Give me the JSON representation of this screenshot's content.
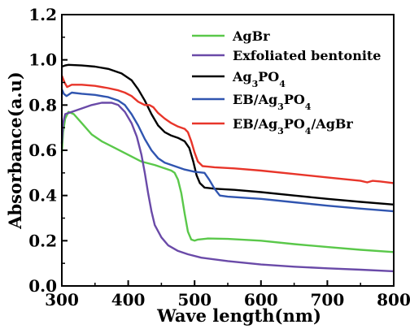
{
  "chart_data": {
    "type": "line",
    "xlabel": "Wave length(nm)",
    "ylabel": "Absorbance(a.u)",
    "xlim": [
      300,
      800
    ],
    "ylim": [
      0.0,
      1.2
    ],
    "xticks": [
      "300",
      "400",
      "500",
      "600",
      "700",
      "800"
    ],
    "yticks": [
      "0.0",
      "0.2",
      "0.4",
      "0.6",
      "0.8",
      "1.0",
      "1.2"
    ],
    "grid": false,
    "legend_position": "top-right",
    "series": [
      {
        "name": "AgBr",
        "color": "#5ac84a",
        "points": [
          [
            300,
            0.59
          ],
          [
            302,
            0.68
          ],
          [
            305,
            0.74
          ],
          [
            310,
            0.77
          ],
          [
            318,
            0.76
          ],
          [
            330,
            0.72
          ],
          [
            345,
            0.67
          ],
          [
            360,
            0.64
          ],
          [
            380,
            0.61
          ],
          [
            400,
            0.58
          ],
          [
            420,
            0.55
          ],
          [
            440,
            0.535
          ],
          [
            455,
            0.52
          ],
          [
            465,
            0.51
          ],
          [
            470,
            0.5
          ],
          [
            475,
            0.47
          ],
          [
            480,
            0.41
          ],
          [
            485,
            0.32
          ],
          [
            490,
            0.24
          ],
          [
            495,
            0.205
          ],
          [
            500,
            0.2
          ],
          [
            505,
            0.205
          ],
          [
            520,
            0.21
          ],
          [
            550,
            0.208
          ],
          [
            600,
            0.2
          ],
          [
            650,
            0.185
          ],
          [
            700,
            0.172
          ],
          [
            750,
            0.16
          ],
          [
            800,
            0.15
          ]
        ]
      },
      {
        "name": "Exfoliated bentonite",
        "color": "#6a4aa8",
        "points": [
          [
            300,
            0.63
          ],
          [
            302,
            0.72
          ],
          [
            305,
            0.76
          ],
          [
            315,
            0.77
          ],
          [
            330,
            0.785
          ],
          [
            345,
            0.8
          ],
          [
            360,
            0.81
          ],
          [
            375,
            0.81
          ],
          [
            385,
            0.8
          ],
          [
            395,
            0.77
          ],
          [
            405,
            0.72
          ],
          [
            413,
            0.66
          ],
          [
            420,
            0.58
          ],
          [
            425,
            0.5
          ],
          [
            430,
            0.41
          ],
          [
            435,
            0.33
          ],
          [
            440,
            0.27
          ],
          [
            450,
            0.215
          ],
          [
            460,
            0.18
          ],
          [
            475,
            0.155
          ],
          [
            490,
            0.14
          ],
          [
            510,
            0.125
          ],
          [
            550,
            0.11
          ],
          [
            600,
            0.095
          ],
          [
            650,
            0.085
          ],
          [
            700,
            0.078
          ],
          [
            750,
            0.072
          ],
          [
            800,
            0.065
          ]
        ]
      },
      {
        "name": "Ag3PO4",
        "label_html": "Ag<tspan baseline-shift=\"sub\" font-size=\"11\">3</tspan>PO<tspan baseline-shift=\"sub\" font-size=\"11\">4</tspan>",
        "color": "#000000",
        "points": [
          [
            300,
            0.97
          ],
          [
            305,
            0.975
          ],
          [
            310,
            0.978
          ],
          [
            330,
            0.975
          ],
          [
            350,
            0.97
          ],
          [
            370,
            0.96
          ],
          [
            390,
            0.94
          ],
          [
            405,
            0.91
          ],
          [
            415,
            0.87
          ],
          [
            425,
            0.82
          ],
          [
            435,
            0.76
          ],
          [
            445,
            0.71
          ],
          [
            455,
            0.68
          ],
          [
            465,
            0.665
          ],
          [
            475,
            0.655
          ],
          [
            485,
            0.64
          ],
          [
            492,
            0.61
          ],
          [
            498,
            0.55
          ],
          [
            503,
            0.49
          ],
          [
            508,
            0.455
          ],
          [
            515,
            0.435
          ],
          [
            530,
            0.43
          ],
          [
            560,
            0.425
          ],
          [
            600,
            0.415
          ],
          [
            650,
            0.4
          ],
          [
            700,
            0.385
          ],
          [
            750,
            0.372
          ],
          [
            800,
            0.36
          ]
        ]
      },
      {
        "name": "EB/Ag3PO4",
        "label_html": "EB/Ag<tspan baseline-shift=\"sub\" font-size=\"11\">3</tspan>PO<tspan baseline-shift=\"sub\" font-size=\"11\">4</tspan>",
        "color": "#3055b0",
        "points": [
          [
            300,
            0.87
          ],
          [
            303,
            0.85
          ],
          [
            307,
            0.84
          ],
          [
            315,
            0.855
          ],
          [
            330,
            0.85
          ],
          [
            350,
            0.845
          ],
          [
            370,
            0.835
          ],
          [
            385,
            0.82
          ],
          [
            395,
            0.8
          ],
          [
            405,
            0.76
          ],
          [
            415,
            0.71
          ],
          [
            425,
            0.65
          ],
          [
            435,
            0.6
          ],
          [
            445,
            0.565
          ],
          [
            455,
            0.545
          ],
          [
            470,
            0.53
          ],
          [
            485,
            0.515
          ],
          [
            500,
            0.505
          ],
          [
            515,
            0.5
          ],
          [
            522,
            0.47
          ],
          [
            530,
            0.43
          ],
          [
            538,
            0.4
          ],
          [
            550,
            0.395
          ],
          [
            600,
            0.385
          ],
          [
            650,
            0.37
          ],
          [
            700,
            0.355
          ],
          [
            750,
            0.342
          ],
          [
            800,
            0.33
          ]
        ]
      },
      {
        "name": "EB/Ag3PO4/AgBr",
        "label_html": "EB/Ag<tspan baseline-shift=\"sub\" font-size=\"11\">3</tspan>PO<tspan baseline-shift=\"sub\" font-size=\"11\">4</tspan><tspan baseline-shift=\"0\">/AgBr</tspan>",
        "color": "#e8352a",
        "points": [
          [
            300,
            0.93
          ],
          [
            304,
            0.9
          ],
          [
            308,
            0.88
          ],
          [
            315,
            0.89
          ],
          [
            330,
            0.89
          ],
          [
            350,
            0.885
          ],
          [
            370,
            0.875
          ],
          [
            385,
            0.865
          ],
          [
            395,
            0.855
          ],
          [
            405,
            0.84
          ],
          [
            415,
            0.815
          ],
          [
            425,
            0.8
          ],
          [
            432,
            0.8
          ],
          [
            438,
            0.79
          ],
          [
            445,
            0.765
          ],
          [
            455,
            0.74
          ],
          [
            465,
            0.72
          ],
          [
            475,
            0.705
          ],
          [
            485,
            0.695
          ],
          [
            490,
            0.68
          ],
          [
            495,
            0.64
          ],
          [
            500,
            0.59
          ],
          [
            505,
            0.55
          ],
          [
            512,
            0.53
          ],
          [
            530,
            0.525
          ],
          [
            560,
            0.52
          ],
          [
            600,
            0.51
          ],
          [
            650,
            0.495
          ],
          [
            700,
            0.48
          ],
          [
            750,
            0.465
          ],
          [
            760,
            0.458
          ],
          [
            768,
            0.465
          ],
          [
            780,
            0.462
          ],
          [
            800,
            0.455
          ]
        ]
      }
    ]
  }
}
